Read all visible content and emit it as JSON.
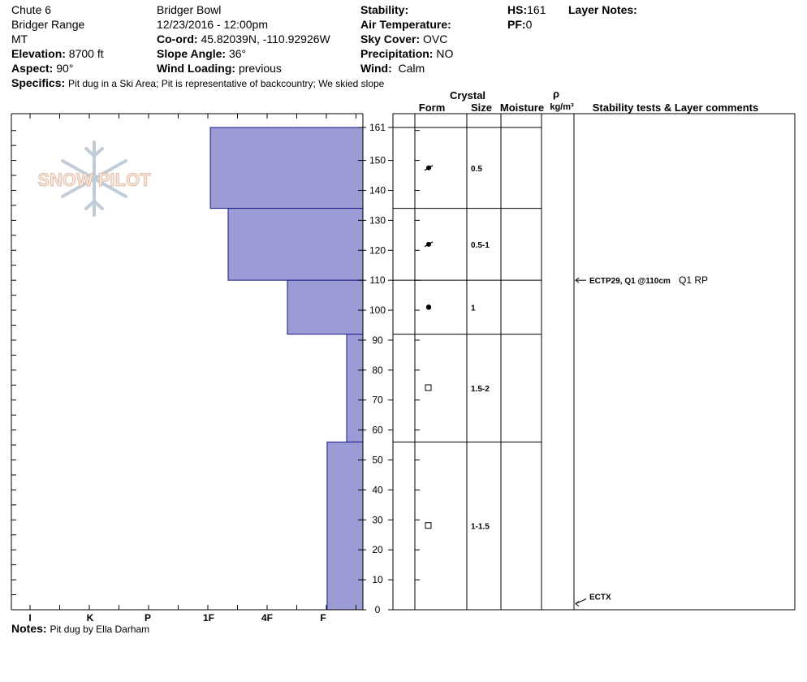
{
  "header": {
    "location": "Chute 6",
    "range": "Bridger Range",
    "state": "MT",
    "elevation_label": "Elevation:",
    "elevation": "8700 ft",
    "aspect_label": "Aspect:",
    "aspect": "90°",
    "area": "Bridger Bowl",
    "datetime": "12/23/2016 - 12:00pm",
    "coord_label": "Co-ord:",
    "coord": "45.82039N, -110.92926W",
    "slope_label": "Slope Angle:",
    "slope": "36°",
    "wind_loading_label": "Wind Loading:",
    "wind_loading": "previous",
    "stability_label": "Stability:",
    "stability": "",
    "air_temp_label": "Air Temperature:",
    "air_temp": "",
    "sky_cover_label": "Sky Cover:",
    "sky_cover": "OVC",
    "precip_label": "Precipitation:",
    "precip": "NO",
    "wind_label": "Wind:",
    "wind": "Calm",
    "hs_label": "HS:",
    "hs": "161",
    "pf_label": "PF:",
    "pf": "0",
    "layer_notes_label": "Layer Notes:",
    "specifics_label": "Specifics:",
    "specifics": "Pit dug in a Ski Area;  Pit is representative of backcountry;  We skied slope"
  },
  "notes_label": "Notes:",
  "notes": "Pit dug by Ella Darham",
  "logo_text": "SNOW PILOT",
  "colors": {
    "hardness_fill": "#9b9bd6",
    "hardness_stroke": "#1a1a8c"
  },
  "columns": {
    "crystal": "Crystal",
    "form": "Form",
    "size": "Size",
    "moisture": "Moisture",
    "rho": "ρ",
    "density_unit": "kg/m³",
    "stability_tests": "Stability tests & Layer comments"
  },
  "chart_data": {
    "type": "snow-profile",
    "y_axis": {
      "min": 0,
      "max": 161,
      "ticks": [
        0,
        10,
        20,
        30,
        40,
        50,
        60,
        70,
        80,
        90,
        100,
        110,
        120,
        130,
        140,
        150,
        161
      ]
    },
    "hardness_scale": [
      "I",
      "K",
      "P",
      "1F",
      "4F",
      "F"
    ],
    "layers": [
      {
        "top": 161,
        "bottom": 134,
        "hardness_index": 2.3,
        "form": "rounding-faceted",
        "size": "0.5"
      },
      {
        "top": 134,
        "bottom": 110,
        "hardness_index": 2.0,
        "form": "rounding-faceted",
        "size": "0.5-1"
      },
      {
        "top": 110,
        "bottom": 92,
        "hardness_index": 1.0,
        "form": "rounds",
        "size": "1"
      },
      {
        "top": 92,
        "bottom": 56,
        "hardness_index": 0.0,
        "form": "facets",
        "size": "1.5-2"
      },
      {
        "top": 56,
        "bottom": 0,
        "hardness_index": 0.33,
        "form": "facets",
        "size": "1-1.5"
      }
    ],
    "tests": [
      {
        "depth": 110,
        "label": "ECTP29, Q1 @110cm",
        "extra": "Q1 RP"
      },
      {
        "depth": 2,
        "label": "ECTX",
        "extra": ""
      }
    ]
  }
}
